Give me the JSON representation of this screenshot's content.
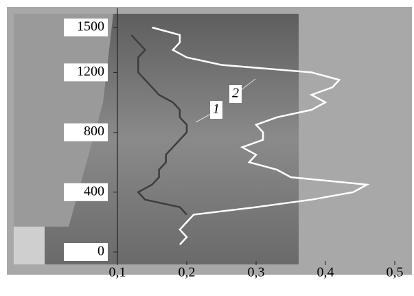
{
  "chart_data": {
    "type": "line",
    "y": [
      50,
      100,
      150,
      200,
      250,
      300,
      350,
      400,
      450,
      500,
      550,
      600,
      650,
      700,
      750,
      800,
      850,
      900,
      950,
      1000,
      1050,
      1100,
      1150,
      1200,
      1250,
      1300,
      1350,
      1400,
      1450,
      1500
    ],
    "series": [
      {
        "name": "1",
        "color": "#3a3f3a",
        "values": [
          null,
          null,
          null,
          null,
          0.2,
          0.19,
          0.14,
          0.13,
          0.15,
          0.16,
          0.16,
          0.17,
          0.17,
          0.18,
          0.19,
          0.2,
          0.2,
          0.19,
          0.19,
          0.18,
          0.16,
          0.15,
          0.14,
          0.13,
          0.13,
          0.13,
          0.14,
          0.13,
          0.12,
          null
        ]
      },
      {
        "name": "2",
        "color": "#ffffff",
        "values": [
          0.19,
          0.2,
          0.19,
          0.2,
          0.21,
          0.3,
          0.38,
          0.44,
          0.46,
          0.35,
          0.33,
          0.29,
          0.3,
          0.28,
          0.31,
          0.31,
          0.3,
          0.33,
          0.38,
          0.4,
          0.38,
          0.41,
          0.42,
          0.38,
          0.25,
          0.2,
          0.18,
          0.19,
          0.19,
          0.15
        ]
      }
    ],
    "xlim": [
      0.1,
      0.5
    ],
    "xticks": [
      {
        "value": 0.1,
        "label": "0,1"
      },
      {
        "value": 0.2,
        "label": "0,2"
      },
      {
        "value": 0.3,
        "label": "0,3"
      },
      {
        "value": 0.4,
        "label": "0,4"
      },
      {
        "value": 0.5,
        "label": "0,5"
      }
    ],
    "ylim": [
      0,
      1500
    ],
    "yticks": [
      0,
      400,
      800,
      1200,
      1500
    ]
  }
}
